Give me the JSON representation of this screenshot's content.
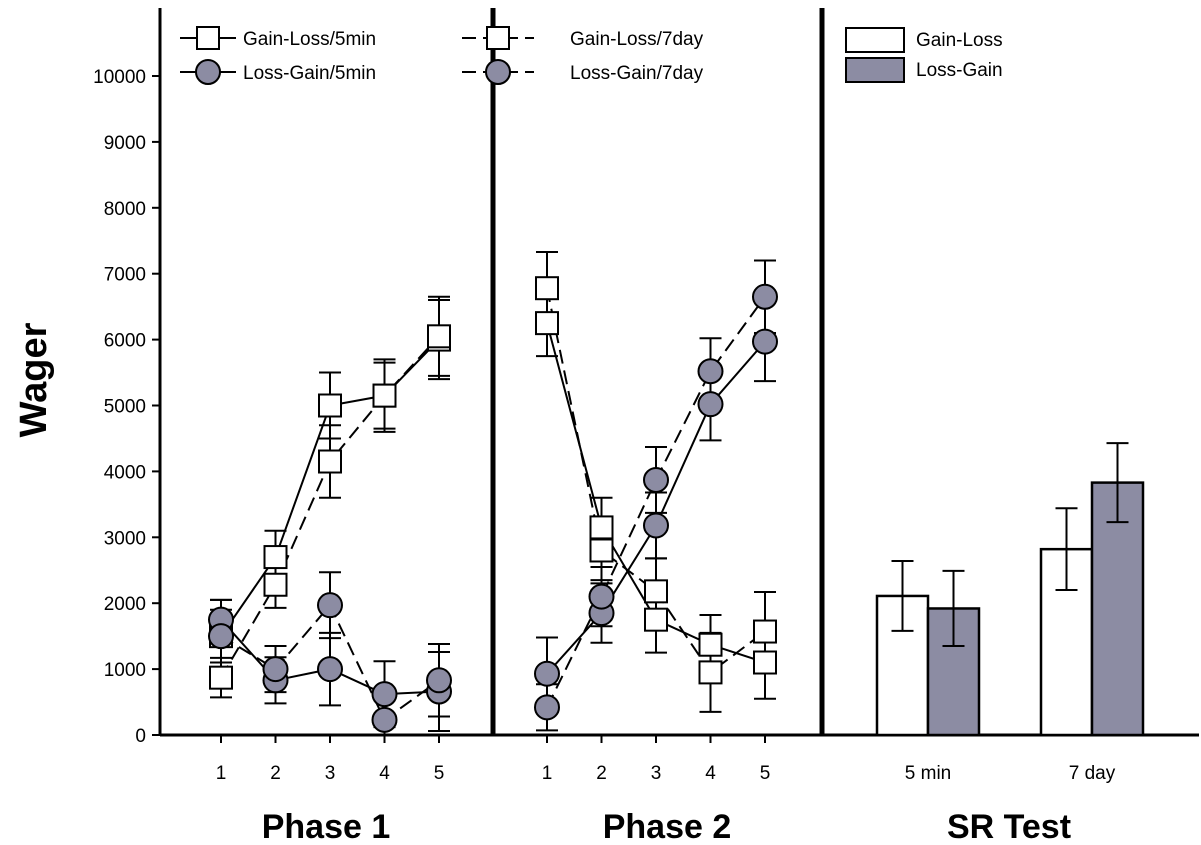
{
  "chart_data": {
    "type": "line",
    "ylabel": "Wager",
    "ylim": [
      0,
      10000
    ],
    "yticks": [
      0,
      1000,
      2000,
      3000,
      4000,
      5000,
      6000,
      7000,
      8000,
      9000,
      10000
    ],
    "colors": {
      "open": "#ffffff",
      "filled": "#8c8ca3",
      "ink": "#000000"
    },
    "line_legend": [
      {
        "label": "Gain-Loss/5min",
        "marker": "square",
        "dash": "solid"
      },
      {
        "label": "Loss-Gain/5min",
        "marker": "circle",
        "dash": "solid"
      },
      {
        "label": "Gain-Loss/7day",
        "marker": "square",
        "dash": "dashed"
      },
      {
        "label": "Loss-Gain/7day",
        "marker": "circle",
        "dash": "dashed"
      }
    ],
    "bar_legend": [
      {
        "label": "Gain-Loss",
        "fill": "open"
      },
      {
        "label": "Loss-Gain",
        "fill": "filled"
      }
    ],
    "panels": [
      {
        "title": "Phase 1",
        "x": [
          1,
          2,
          3,
          4,
          5
        ],
        "series": [
          {
            "marker": "square",
            "dash": "solid",
            "values": [
              1500,
              2700,
              5000,
              5150,
              6000
            ],
            "err": [
              550,
              400,
              500,
              550,
              600
            ]
          },
          {
            "marker": "square",
            "dash": "dashed",
            "values": [
              870,
              2280,
              4150,
              5150,
              6050
            ],
            "err": [
              300,
              350,
              550,
              500,
              600
            ]
          },
          {
            "marker": "circle",
            "dash": "solid",
            "values": [
              1750,
              830,
              1000,
              620,
              660
            ],
            "err": [
              300,
              350,
              550,
              500,
              600
            ]
          },
          {
            "marker": "circle",
            "dash": "dashed",
            "values": [
              1500,
              1000,
              1970,
              230,
              830
            ],
            "err": [
              400,
              350,
              500,
              400,
              550
            ]
          }
        ]
      },
      {
        "title": "Phase 2",
        "x": [
          1,
          2,
          3,
          4,
          5
        ],
        "series": [
          {
            "marker": "square",
            "dash": "solid",
            "values": [
              6250,
              3150,
              1750,
              1370,
              1100
            ],
            "err": [
              500,
              450,
              500,
              450,
              550
            ]
          },
          {
            "marker": "square",
            "dash": "dashed",
            "values": [
              6780,
              2800,
              2180,
              950,
              1570
            ],
            "err": [
              550,
              450,
              500,
              600,
              600
            ]
          },
          {
            "marker": "circle",
            "dash": "solid",
            "values": [
              930,
              1850,
              3180,
              5020,
              5970
            ],
            "err": [
              550,
              450,
              500,
              550,
              600
            ]
          },
          {
            "marker": "circle",
            "dash": "dashed",
            "values": [
              420,
              2100,
              3870,
              5520,
              6650
            ],
            "err": [
              350,
              450,
              500,
              500,
              550
            ]
          }
        ]
      },
      {
        "title": "SR Test",
        "type": "bar",
        "categories": [
          "5 min",
          "7 day"
        ],
        "series": [
          {
            "fill": "open",
            "values": [
              2110,
              2820
            ],
            "err": [
              530,
              620
            ]
          },
          {
            "fill": "filled",
            "values": [
              1920,
              3830
            ],
            "err": [
              570,
              600
            ]
          }
        ]
      }
    ]
  }
}
